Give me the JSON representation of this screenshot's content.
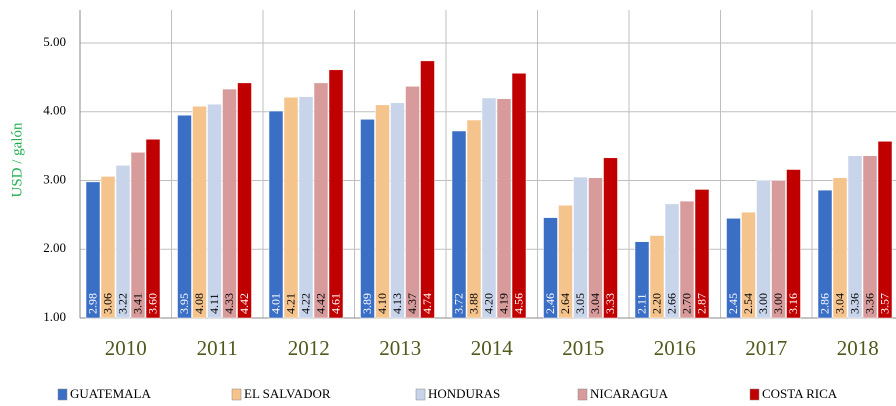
{
  "chart_data": {
    "type": "bar",
    "y_label": "USD / galón",
    "categories": [
      "2010",
      "2011",
      "2012",
      "2013",
      "2014",
      "2015",
      "2016",
      "2017",
      "2018"
    ],
    "series": [
      {
        "name": "GUATEMALA",
        "color": "#3b6fc6",
        "values": [
          2.98,
          3.95,
          4.01,
          3.89,
          3.72,
          2.46,
          2.11,
          2.45,
          2.86
        ]
      },
      {
        "name": "EL SALVADOR",
        "color": "#f5c38c",
        "values": [
          3.06,
          4.08,
          4.21,
          4.1,
          3.88,
          2.64,
          2.2,
          2.54,
          3.04
        ],
        "value_labels": [
          "3.06",
          "4.08",
          "4.21",
          "4.10",
          "3.88",
          "2.64",
          "2.20",
          "2.54",
          "3.04"
        ]
      },
      {
        "name": "HONDURAS",
        "color": "#c7d4ea",
        "values": [
          3.22,
          4.11,
          4.22,
          4.13,
          4.2,
          3.05,
          2.66,
          3.0,
          3.36
        ],
        "value_labels": [
          "3.22",
          "4.11",
          "4.22",
          "4.13",
          "4.20",
          "3.05",
          "2.66",
          "3.00",
          "3.36"
        ]
      },
      {
        "name": "NICARAGUA",
        "color": "#d89b9b",
        "values": [
          3.41,
          4.33,
          4.42,
          4.37,
          4.19,
          3.04,
          2.7,
          3.0,
          3.36
        ],
        "value_labels": [
          "3.41",
          "4.33",
          "4.42",
          "4.37",
          "4.19",
          "3.04",
          "2.70",
          "3.00",
          "3.36"
        ]
      },
      {
        "name": "COSTA RICA",
        "color": "#c00000",
        "values": [
          3.6,
          4.42,
          4.61,
          4.74,
          4.56,
          3.33,
          2.87,
          3.16,
          3.57
        ],
        "value_labels": [
          "3.60",
          "4.42",
          "4.61",
          "4.74",
          "4.56",
          "3.33",
          "2.87",
          "3.16",
          "3.57"
        ]
      }
    ],
    "ylim": [
      1,
      5.48
    ],
    "yticks": [
      {
        "value": 1,
        "label": "1.00"
      },
      {
        "value": 2,
        "label": "2.00"
      },
      {
        "value": 3,
        "label": "3.00"
      },
      {
        "value": 4,
        "label": "4.00"
      },
      {
        "value": 5,
        "label": "5.00"
      }
    ],
    "grid": true
  }
}
